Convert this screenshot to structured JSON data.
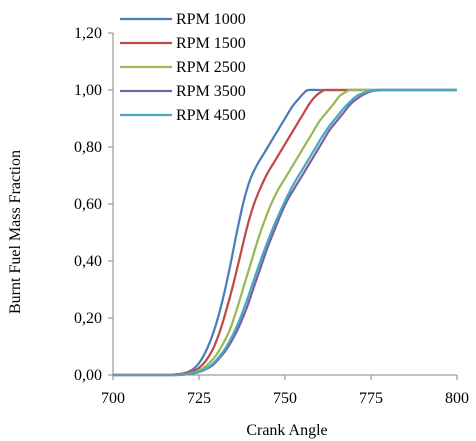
{
  "chart_data": {
    "type": "line",
    "xlabel": "Crank Angle",
    "ylabel": "Burnt Fuel Mass Fraction",
    "xlim": [
      700,
      800
    ],
    "ylim": [
      0,
      1.2
    ],
    "xticks": [
      700,
      725,
      750,
      775,
      800
    ],
    "yticks": [
      0,
      0.2,
      0.4,
      0.6,
      0.8,
      1.0,
      1.2
    ],
    "xtick_labels": [
      "700",
      "725",
      "750",
      "775",
      "800"
    ],
    "ytick_labels": [
      "0,00",
      "0,20",
      "0,40",
      "0,60",
      "0,80",
      "1,00",
      "1,20"
    ],
    "grid": false,
    "legend_position": "top-left",
    "series": [
      {
        "name": "RPM 1000",
        "color": "#4a7ebb",
        "x": [
          700,
          715,
          718,
          720,
          722,
          724,
          726,
          728,
          730,
          732,
          734,
          736,
          738,
          740,
          742,
          744,
          746,
          748,
          750,
          752,
          754,
          756,
          757,
          760,
          770,
          780,
          800
        ],
        "y": [
          0,
          0,
          0.002,
          0.005,
          0.012,
          0.028,
          0.06,
          0.11,
          0.18,
          0.27,
          0.38,
          0.5,
          0.61,
          0.69,
          0.74,
          0.78,
          0.82,
          0.86,
          0.9,
          0.94,
          0.97,
          0.995,
          1.0,
          1.0,
          1.0,
          1.0,
          1.0
        ]
      },
      {
        "name": "RPM 1500",
        "color": "#be4b48",
        "x": [
          700,
          716,
          719,
          721,
          723,
          725,
          727,
          729,
          731,
          733,
          735,
          737,
          739,
          741,
          743,
          745,
          747,
          749,
          751,
          753,
          755,
          757,
          759,
          761,
          762,
          770,
          780,
          800
        ],
        "y": [
          0,
          0,
          0.002,
          0.005,
          0.012,
          0.025,
          0.05,
          0.09,
          0.15,
          0.23,
          0.32,
          0.42,
          0.52,
          0.6,
          0.66,
          0.71,
          0.75,
          0.79,
          0.83,
          0.87,
          0.91,
          0.95,
          0.98,
          0.997,
          1.0,
          1.0,
          1.0,
          1.0
        ]
      },
      {
        "name": "RPM 2500",
        "color": "#98b954",
        "x": [
          700,
          717,
          720,
          722,
          724,
          726,
          728,
          730,
          732,
          734,
          736,
          738,
          740,
          742,
          744,
          746,
          748,
          750,
          752,
          754,
          756,
          758,
          760,
          762,
          764,
          766,
          768,
          769,
          775,
          780,
          800
        ],
        "y": [
          0,
          0,
          0.002,
          0.005,
          0.011,
          0.022,
          0.042,
          0.07,
          0.11,
          0.16,
          0.23,
          0.31,
          0.39,
          0.47,
          0.54,
          0.6,
          0.65,
          0.69,
          0.73,
          0.77,
          0.81,
          0.85,
          0.89,
          0.92,
          0.95,
          0.98,
          0.995,
          1.0,
          1.0,
          1.0,
          1.0
        ]
      },
      {
        "name": "RPM 3500",
        "color": "#7d60a0",
        "x": [
          700,
          718,
          721,
          723,
          725,
          727,
          729,
          731,
          733,
          735,
          737,
          739,
          741,
          743,
          745,
          747,
          749,
          751,
          753,
          755,
          757,
          759,
          761,
          763,
          765,
          767,
          769,
          771,
          773,
          775,
          777,
          778,
          780,
          800
        ],
        "y": [
          0,
          0,
          0.002,
          0.005,
          0.01,
          0.02,
          0.035,
          0.06,
          0.09,
          0.13,
          0.18,
          0.24,
          0.31,
          0.38,
          0.45,
          0.51,
          0.57,
          0.62,
          0.66,
          0.7,
          0.74,
          0.78,
          0.82,
          0.86,
          0.89,
          0.92,
          0.95,
          0.97,
          0.985,
          0.995,
          0.999,
          1.0,
          1.0,
          1.0
        ]
      },
      {
        "name": "RPM 4500",
        "color": "#46aac5",
        "x": [
          700,
          718,
          721,
          723,
          725,
          727,
          729,
          731,
          733,
          735,
          737,
          739,
          741,
          743,
          745,
          747,
          749,
          751,
          753,
          755,
          757,
          759,
          761,
          763,
          765,
          767,
          769,
          771,
          773,
          775,
          777,
          780,
          800
        ],
        "y": [
          0,
          0,
          0.002,
          0.005,
          0.011,
          0.022,
          0.04,
          0.066,
          0.1,
          0.145,
          0.2,
          0.265,
          0.335,
          0.405,
          0.47,
          0.53,
          0.585,
          0.635,
          0.68,
          0.72,
          0.76,
          0.8,
          0.84,
          0.875,
          0.905,
          0.935,
          0.96,
          0.98,
          0.99,
          0.997,
          1.0,
          1.0,
          1.0
        ]
      }
    ]
  }
}
